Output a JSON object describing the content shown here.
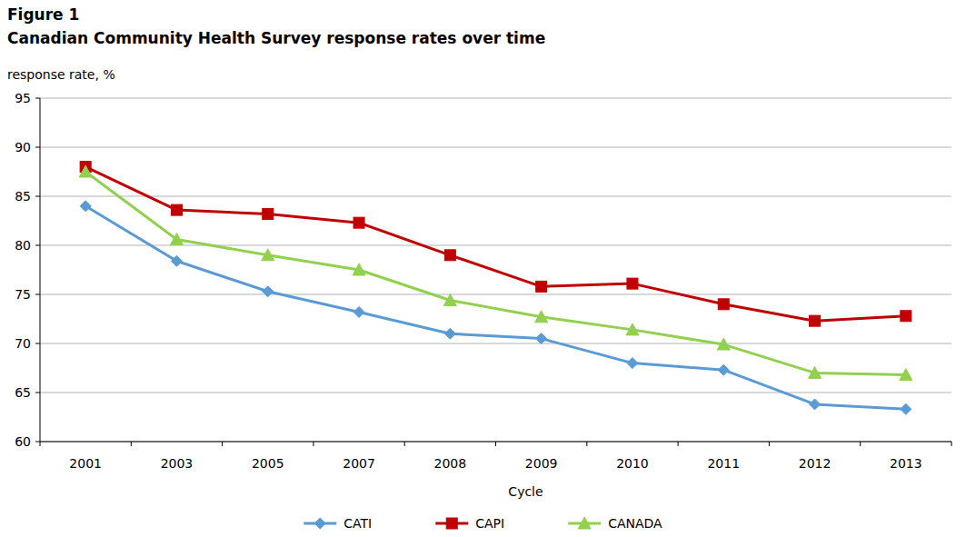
{
  "chart_data": {
    "type": "line",
    "title": "Figure 1",
    "subtitle": "Canadian Community Health Survey response rates over time",
    "y_label": "response rate, %",
    "x_label": "Cycle",
    "categories": [
      "2001",
      "2003",
      "2005",
      "2007",
      "2008",
      "2009",
      "2010",
      "2011",
      "2012",
      "2013"
    ],
    "series": [
      {
        "name": "CATI",
        "color": "#5b9bd5",
        "marker": "diamond",
        "values": [
          84.0,
          78.4,
          75.3,
          73.2,
          71.0,
          70.5,
          68.0,
          67.3,
          63.8,
          63.3
        ]
      },
      {
        "name": "CAPI",
        "color": "#c00000",
        "marker": "square",
        "values": [
          88.0,
          83.6,
          83.2,
          82.3,
          79.0,
          75.8,
          76.1,
          74.0,
          72.3,
          72.8
        ]
      },
      {
        "name": "CANADA",
        "color": "#92d050",
        "marker": "triangle",
        "values": [
          87.5,
          80.6,
          79.0,
          77.5,
          74.4,
          72.7,
          71.4,
          69.9,
          67.0,
          66.8
        ]
      }
    ],
    "ylim": [
      60,
      95
    ],
    "yticks": [
      60,
      65,
      70,
      75,
      80,
      85,
      90,
      95
    ],
    "grid": true,
    "legend": "bottom"
  }
}
